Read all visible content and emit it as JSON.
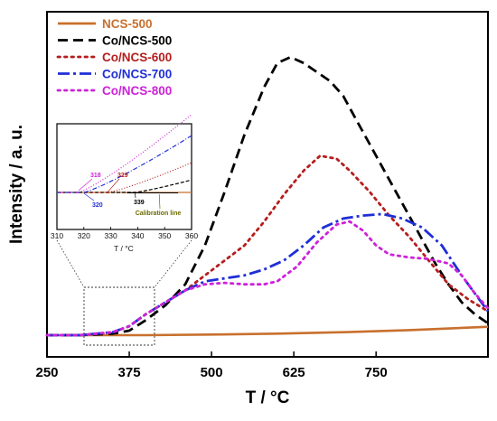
{
  "chart_data": {
    "type": "line",
    "xlabel": "T / °C",
    "ylabel": "Intensity / a. u.",
    "xlim": [
      250,
      920
    ],
    "ylim": [
      0,
      100
    ],
    "x_ticks": [
      "250",
      "375",
      "500",
      "625",
      "750"
    ],
    "y_ticks_shown": false,
    "grid": false,
    "legend_position": "top-left",
    "series": [
      {
        "name": "NCS-500",
        "color": "#c8702d",
        "style": "solid",
        "points": [
          [
            250,
            0.0
          ],
          [
            400,
            0.0
          ],
          [
            500,
            0.2
          ],
          [
            600,
            0.5
          ],
          [
            700,
            1.0
          ],
          [
            800,
            1.7
          ],
          [
            920,
            2.8
          ]
        ]
      },
      {
        "name": "Co/NCS-500",
        "color": "#000000",
        "style": "dash",
        "points": [
          [
            250,
            0.0
          ],
          [
            300,
            0.0
          ],
          [
            350,
            0.5
          ],
          [
            375,
            1.5
          ],
          [
            400,
            5
          ],
          [
            430,
            10
          ],
          [
            460,
            17
          ],
          [
            490,
            30
          ],
          [
            520,
            48
          ],
          [
            550,
            67
          ],
          [
            580,
            83
          ],
          [
            600,
            91
          ],
          [
            620,
            93
          ],
          [
            640,
            91
          ],
          [
            660,
            88
          ],
          [
            680,
            85
          ],
          [
            700,
            80
          ],
          [
            720,
            72
          ],
          [
            750,
            60
          ],
          [
            780,
            48
          ],
          [
            810,
            36
          ],
          [
            840,
            24
          ],
          [
            860,
            17
          ],
          [
            880,
            11
          ],
          [
            900,
            7
          ],
          [
            920,
            4
          ]
        ]
      },
      {
        "name": "Co/NCS-600",
        "color": "#b51e1e",
        "style": "dot",
        "points": [
          [
            250,
            0.0
          ],
          [
            300,
            0.0
          ],
          [
            350,
            1
          ],
          [
            375,
            3
          ],
          [
            400,
            7
          ],
          [
            430,
            11
          ],
          [
            460,
            15
          ],
          [
            490,
            20
          ],
          [
            520,
            25
          ],
          [
            550,
            30
          ],
          [
            580,
            38
          ],
          [
            610,
            47
          ],
          [
            640,
            55
          ],
          [
            665,
            60
          ],
          [
            690,
            59
          ],
          [
            710,
            55
          ],
          [
            740,
            48
          ],
          [
            770,
            40
          ],
          [
            800,
            33
          ],
          [
            830,
            25
          ],
          [
            860,
            17
          ],
          [
            890,
            12
          ],
          [
            920,
            8
          ]
        ]
      },
      {
        "name": "Co/NCS-700",
        "color": "#1f2fd6",
        "style": "dashdot",
        "points": [
          [
            250,
            0.0
          ],
          [
            300,
            0.0
          ],
          [
            350,
            1
          ],
          [
            375,
            3
          ],
          [
            400,
            7
          ],
          [
            430,
            11
          ],
          [
            460,
            15
          ],
          [
            490,
            18
          ],
          [
            520,
            19
          ],
          [
            550,
            20
          ],
          [
            580,
            22
          ],
          [
            610,
            25
          ],
          [
            640,
            30
          ],
          [
            670,
            36
          ],
          [
            700,
            39
          ],
          [
            730,
            40
          ],
          [
            760,
            40.5
          ],
          [
            790,
            39
          ],
          [
            820,
            36
          ],
          [
            850,
            30
          ],
          [
            880,
            20
          ],
          [
            900,
            14
          ],
          [
            920,
            8
          ]
        ]
      },
      {
        "name": "Co/NCS-800",
        "color": "#cc22d8",
        "style": "dot",
        "points": [
          [
            250,
            0.0
          ],
          [
            300,
            0.0
          ],
          [
            350,
            1
          ],
          [
            375,
            3
          ],
          [
            400,
            7
          ],
          [
            430,
            11
          ],
          [
            460,
            15
          ],
          [
            490,
            17
          ],
          [
            520,
            17.5
          ],
          [
            550,
            17
          ],
          [
            580,
            17
          ],
          [
            600,
            18
          ],
          [
            630,
            23
          ],
          [
            660,
            31
          ],
          [
            690,
            37
          ],
          [
            710,
            38
          ],
          [
            730,
            35
          ],
          [
            750,
            30
          ],
          [
            770,
            27
          ],
          [
            800,
            26
          ],
          [
            830,
            25.5
          ],
          [
            860,
            24
          ],
          [
            880,
            20
          ],
          [
            900,
            14
          ],
          [
            920,
            9
          ]
        ]
      }
    ],
    "inset": {
      "xlabel": "T / °C",
      "xlim": [
        310,
        360
      ],
      "x_ticks": [
        "310",
        "320",
        "330",
        "340",
        "350",
        "360"
      ],
      "annotations": [
        {
          "text": "318",
          "color": "#cc22d8",
          "x": 318
        },
        {
          "text": "329",
          "color": "#b51e1e",
          "x": 329
        },
        {
          "text": "320",
          "color": "#1f2fd6",
          "x": 320
        },
        {
          "text": "339",
          "color": "#000000",
          "x": 339
        },
        {
          "text": "Calibration line",
          "color": "#6b6b00",
          "x": 342
        }
      ]
    }
  }
}
